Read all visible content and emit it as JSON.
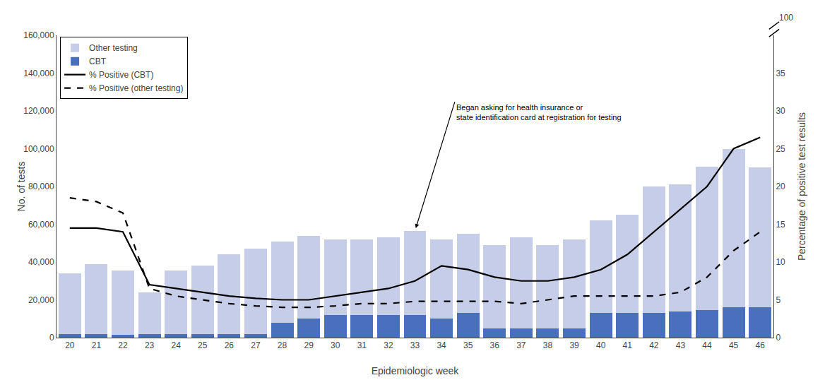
{
  "chart_data": {
    "type": "bar",
    "xlabel": "Epidemiologic week",
    "ylabel": "No. of tests",
    "y2label": "Percentage of positive test results",
    "categories": [
      20,
      21,
      22,
      23,
      24,
      25,
      26,
      27,
      28,
      29,
      30,
      31,
      32,
      33,
      34,
      35,
      36,
      37,
      38,
      39,
      40,
      41,
      42,
      43,
      44,
      45,
      46
    ],
    "stacked": true,
    "series": [
      {
        "name": "CBT",
        "type": "bar",
        "color": "#4a6fbe",
        "values": [
          2000,
          2000,
          1500,
          2000,
          2000,
          2000,
          2000,
          2000,
          8000,
          10000,
          12000,
          12000,
          12000,
          12000,
          10000,
          13000,
          5000,
          5000,
          5000,
          5000,
          13000,
          13000,
          13000,
          14000,
          14500,
          16000,
          16000
        ]
      },
      {
        "name": "Other testing",
        "type": "bar",
        "color": "#c5cde8",
        "values": [
          32000,
          37000,
          34000,
          22000,
          33500,
          36000,
          42000,
          45000,
          43000,
          44000,
          40000,
          40000,
          41000,
          44500,
          42000,
          42000,
          44000,
          48000,
          44000,
          47000,
          49000,
          52000,
          67000,
          67000,
          76000,
          84000,
          74000
        ]
      },
      {
        "name": "% Positive (CBT)",
        "type": "line",
        "axis": "y2",
        "color": "black",
        "line_style": "solid",
        "values": [
          14.5,
          14.5,
          14.0,
          7.0,
          6.5,
          6.0,
          5.5,
          5.2,
          5.0,
          5.0,
          5.5,
          6.0,
          6.5,
          7.5,
          9.5,
          9.0,
          8.0,
          7.5,
          7.5,
          8.0,
          9.0,
          11.0,
          14.0,
          17.0,
          20.0,
          25.0,
          26.5
        ]
      },
      {
        "name": "% Positive (other testing)",
        "type": "line",
        "axis": "y2",
        "color": "black",
        "line_style": "dashed",
        "values": [
          18.5,
          18.0,
          16.5,
          6.5,
          5.5,
          5.0,
          4.5,
          4.2,
          4.0,
          4.0,
          4.2,
          4.5,
          4.5,
          4.8,
          4.8,
          4.8,
          4.8,
          4.5,
          5.0,
          5.5,
          5.5,
          5.5,
          5.5,
          6.0,
          8.0,
          11.5,
          14.0
        ]
      }
    ],
    "ylim": [
      0,
      160000
    ],
    "yticks": [
      0,
      {
        "value": 20000,
        "label": "20,000"
      },
      {
        "value": 40000,
        "label": "40,000"
      },
      {
        "value": 60000,
        "label": "60,000"
      },
      {
        "value": 80000,
        "label": "80,000"
      },
      {
        "value": 100000,
        "label": "100,000"
      },
      {
        "value": 120000,
        "label": "120,000"
      },
      {
        "value": 140000,
        "label": "140,000"
      },
      {
        "value": 160000,
        "label": "160,000"
      }
    ],
    "y2lim": [
      0,
      40
    ],
    "y2ticks": [
      0,
      5,
      10,
      15,
      20,
      25,
      30,
      35
    ],
    "annotations": [
      {
        "text": "Began asking for health insurance or\nstate identification card at registration for testing",
        "x": 33
      },
      {
        "text": "100"
      }
    ],
    "legend": "upper left",
    "grid": false
  }
}
